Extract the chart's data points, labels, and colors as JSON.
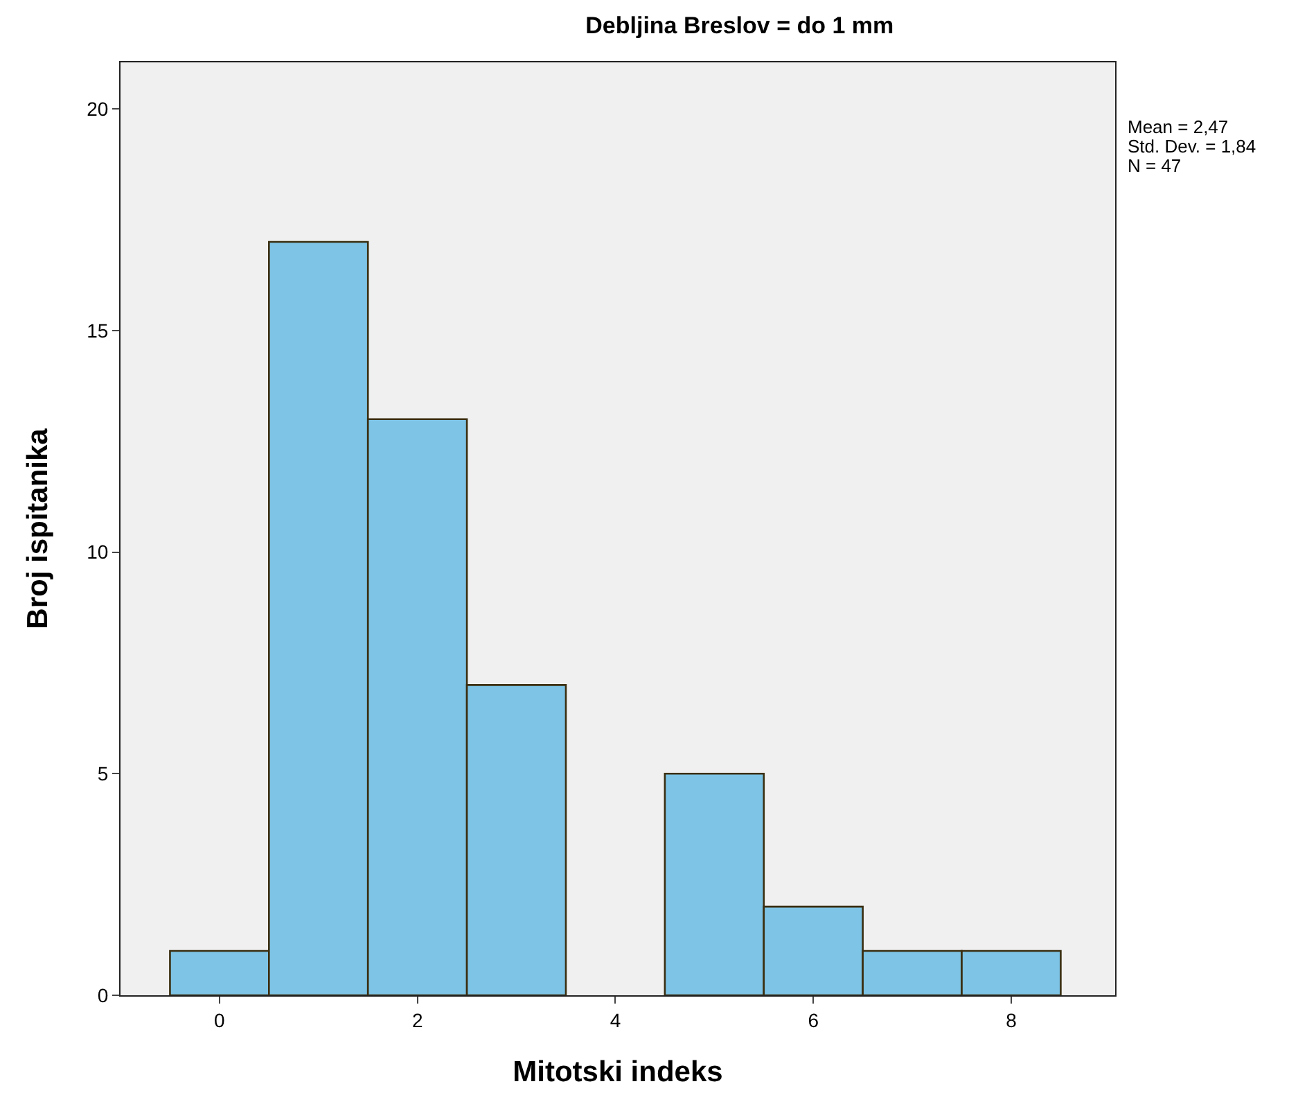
{
  "chart_data": {
    "type": "histogram",
    "title": "Debljina Breslov = do 1 mm",
    "xlabel": "Mitotski indeks",
    "ylabel": "Broj ispitanika",
    "bins": [
      -0.5,
      0.5,
      1.5,
      2.5,
      3.5,
      4.5,
      5.5,
      6.5,
      7.5,
      8.5
    ],
    "values": [
      1,
      17,
      13,
      7,
      0,
      5,
      2,
      1,
      1
    ],
    "color": "#7ec4e6",
    "xlim": [
      -1,
      9.05
    ],
    "xticks": [
      0,
      2,
      4,
      6,
      8
    ],
    "ylim": [
      0,
      21.05
    ],
    "yticks": [
      0,
      5,
      10,
      15,
      20
    ],
    "grid": false,
    "annotations": [
      "Mean = 2,47",
      "Std. Dev. = 1,84",
      "N = 47"
    ]
  }
}
